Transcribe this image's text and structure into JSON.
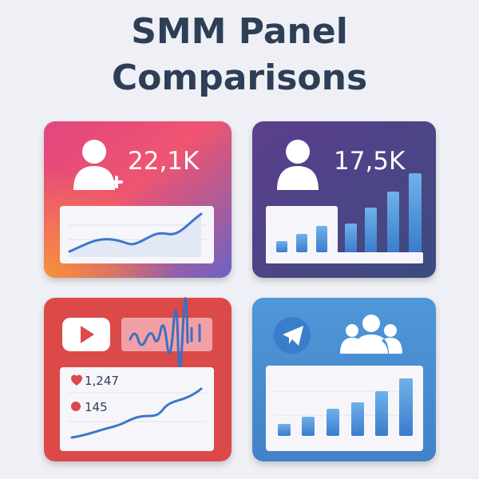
{
  "header": {
    "title_line1": "SMM Panel",
    "title_line2": "Comparisons"
  },
  "cards": {
    "instagram": {
      "stat": "22,1K"
    },
    "facebook": {
      "stat": "17,5K"
    },
    "youtube": {
      "likes": "1,247",
      "comments": "145"
    }
  }
}
